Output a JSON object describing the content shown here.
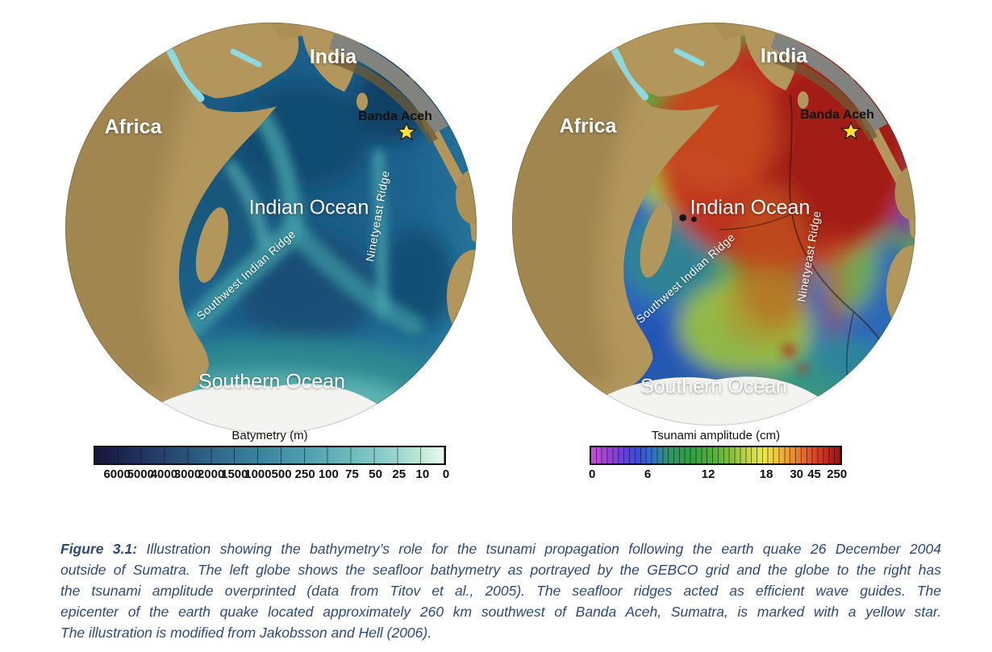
{
  "figure": {
    "colors": {
      "caption_text": "#2b4a7a",
      "star_fill": "#ffe233",
      "land_tan": "#b2965c",
      "ocean_blue": "#1d6390",
      "tsunami_red": "#c22d1e"
    },
    "globes": [
      {
        "id": "bathymetry",
        "labels": {
          "continent_left": "Africa",
          "continent_top": "India",
          "city": "Banda Aceh",
          "ocean": "Indian Ocean",
          "southern_ocean": "Southern Ocean",
          "ridge_vertical": "Ninetyeast Ridge",
          "ridge_diagonal": "Southwest Indian Ridge"
        },
        "colorbar": {
          "title": "Batymetry (m)",
          "ticks": [
            "6000",
            "5000",
            "4000",
            "3000",
            "2000",
            "1500",
            "1000",
            "500",
            "250",
            "100",
            "75",
            "50",
            "25",
            "10",
            "0"
          ],
          "segments": 15
        }
      },
      {
        "id": "tsunami",
        "labels": {
          "continent_left": "Africa",
          "continent_top": "India",
          "city": "Banda Aceh",
          "ocean": "Indian Ocean",
          "southern_ocean": "Southern Ocean",
          "ridge_vertical": "Ninetyeast Ridge",
          "ridge_diagonal": "Southwest Indian Ridge"
        },
        "colorbar": {
          "title": "Tsunami amplitude (cm)",
          "ticks": [
            {
              "label": "0",
              "pct": 1
            },
            {
              "label": "6",
              "pct": 23
            },
            {
              "label": "12",
              "pct": 47
            },
            {
              "label": "18",
              "pct": 70
            },
            {
              "label": "30",
              "pct": 82
            },
            {
              "label": "45",
              "pct": 89
            },
            {
              "label": "250",
              "pct": 98
            }
          ],
          "segments": 45
        }
      }
    ],
    "caption": {
      "label": "Figure 3.1:",
      "line1_rest": " Illustration showing the bathymetry’s role for the tsunami propagation following the earth quake 26 December 2004",
      "lines": [
        "outside of Sumatra. The left globe shows the seafloor bathymetry as portrayed by the GEBCO grid and the globe to the right has",
        "the tsunami amplitude overprinted (data from Titov et al., 2005). The seafloor ridges acted as efficient wave guides. The",
        "epicenter of the earth quake located approximately 260 km southwest of Banda Aceh, Sumatra, is marked with a yellow star.",
        "The illustration is modified from Jakobsson and Hell (2006)."
      ]
    }
  }
}
